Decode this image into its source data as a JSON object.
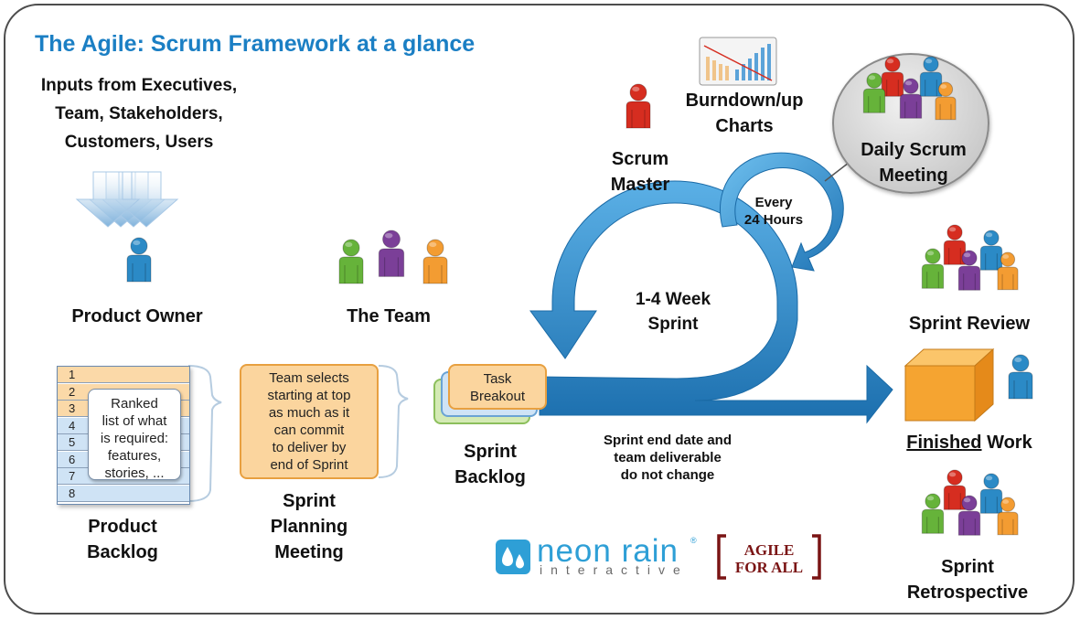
{
  "title": "The Agile: Scrum Framework at a glance",
  "inputs": {
    "line1": "Inputs from Executives,",
    "line2": "Team, Stakeholders,",
    "line3": "Customers, Users"
  },
  "product_owner": "Product Owner",
  "the_team": "The Team",
  "product_backlog": {
    "rows": [
      "1",
      "2",
      "3",
      "4",
      "5",
      "6",
      "7",
      "8"
    ],
    "note": {
      "l1": "Ranked",
      "l2": "list of what",
      "l3": "is required:",
      "l4": "features,",
      "l5": "stories, ..."
    },
    "label1": "Product",
    "label2": "Backlog"
  },
  "planning": {
    "note": {
      "l1": "Team selects",
      "l2": "starting at top",
      "l3": "as much as it",
      "l4": "can commit",
      "l5": "to deliver by",
      "l6": "end of Sprint"
    },
    "label1": "Sprint",
    "label2": "Planning",
    "label3": "Meeting"
  },
  "sprint_backlog": {
    "task1": "Task",
    "task2": "Breakout",
    "label1": "Sprint",
    "label2": "Backlog"
  },
  "sprint_note": {
    "l1": "Sprint end date and",
    "l2": "team deliverable",
    "l3": "do not change"
  },
  "sprint_cycle": {
    "l1": "1-4 Week",
    "l2": "Sprint"
  },
  "daily_cycle": {
    "l1": "Every",
    "l2": "24 Hours"
  },
  "scrum_master": {
    "l1": "Scrum",
    "l2": "Master"
  },
  "burndown": {
    "l1": "Burndown/up",
    "l2": "Charts"
  },
  "daily_scrum": {
    "l1": "Daily Scrum",
    "l2": "Meeting"
  },
  "sprint_review": "Sprint Review",
  "finished_work": {
    "underlined": "Finished",
    "rest": " Work"
  },
  "sprint_retro": {
    "l1": "Sprint",
    "l2": "Retrospective"
  },
  "brand": {
    "neon": "neon rain",
    "interactive": "interactive",
    "agile1": "AGILE",
    "agile2": "FOR ALL"
  },
  "colors": {
    "title_blue": "#1b7fc4",
    "arrow_blue": "#2a86c8",
    "red": "#d62d20",
    "green": "#66b33a",
    "purple": "#7b3f98",
    "orange": "#f39c32",
    "blue_person": "#2b8ac6"
  }
}
